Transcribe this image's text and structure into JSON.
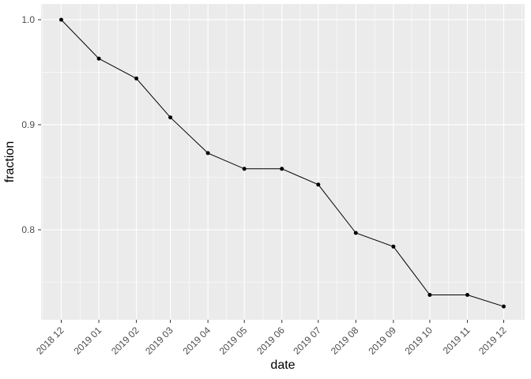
{
  "figure": {
    "background": "#FFFFFF",
    "panel_background": "#EBEBEB",
    "grid_major_color": "#FFFFFF",
    "grid_minor_color": "#FFFFFF",
    "axis_text_color": "#4D4D4D",
    "axis_title_color": "#000000",
    "tick_mark_color": "#333333",
    "line_color": "#000000",
    "point_color": "#000000"
  },
  "chart_data": {
    "type": "line",
    "title": "",
    "xlabel": "date",
    "ylabel": "fraction",
    "categories": [
      "2018 12",
      "2019 01",
      "2019 02",
      "2019 03",
      "2019 04",
      "2019 05",
      "2019 06",
      "2019 07",
      "2019 08",
      "2019 09",
      "2019 10",
      "2019 11",
      "2019 12"
    ],
    "values": [
      1.0,
      0.963,
      0.944,
      0.907,
      0.873,
      0.858,
      0.858,
      0.843,
      0.797,
      0.784,
      0.738,
      0.738,
      0.727
    ],
    "yticks": [
      0.8,
      0.9,
      1.0
    ],
    "ytick_labels": [
      "0.8",
      "0.9",
      "1.0"
    ],
    "ylim": [
      0.7143,
      1.015
    ],
    "x_scale": "date-monthly",
    "x_tick_angle_deg": 45,
    "grid": "major+minor",
    "legend": "none",
    "point_marker": "filled-circle"
  }
}
